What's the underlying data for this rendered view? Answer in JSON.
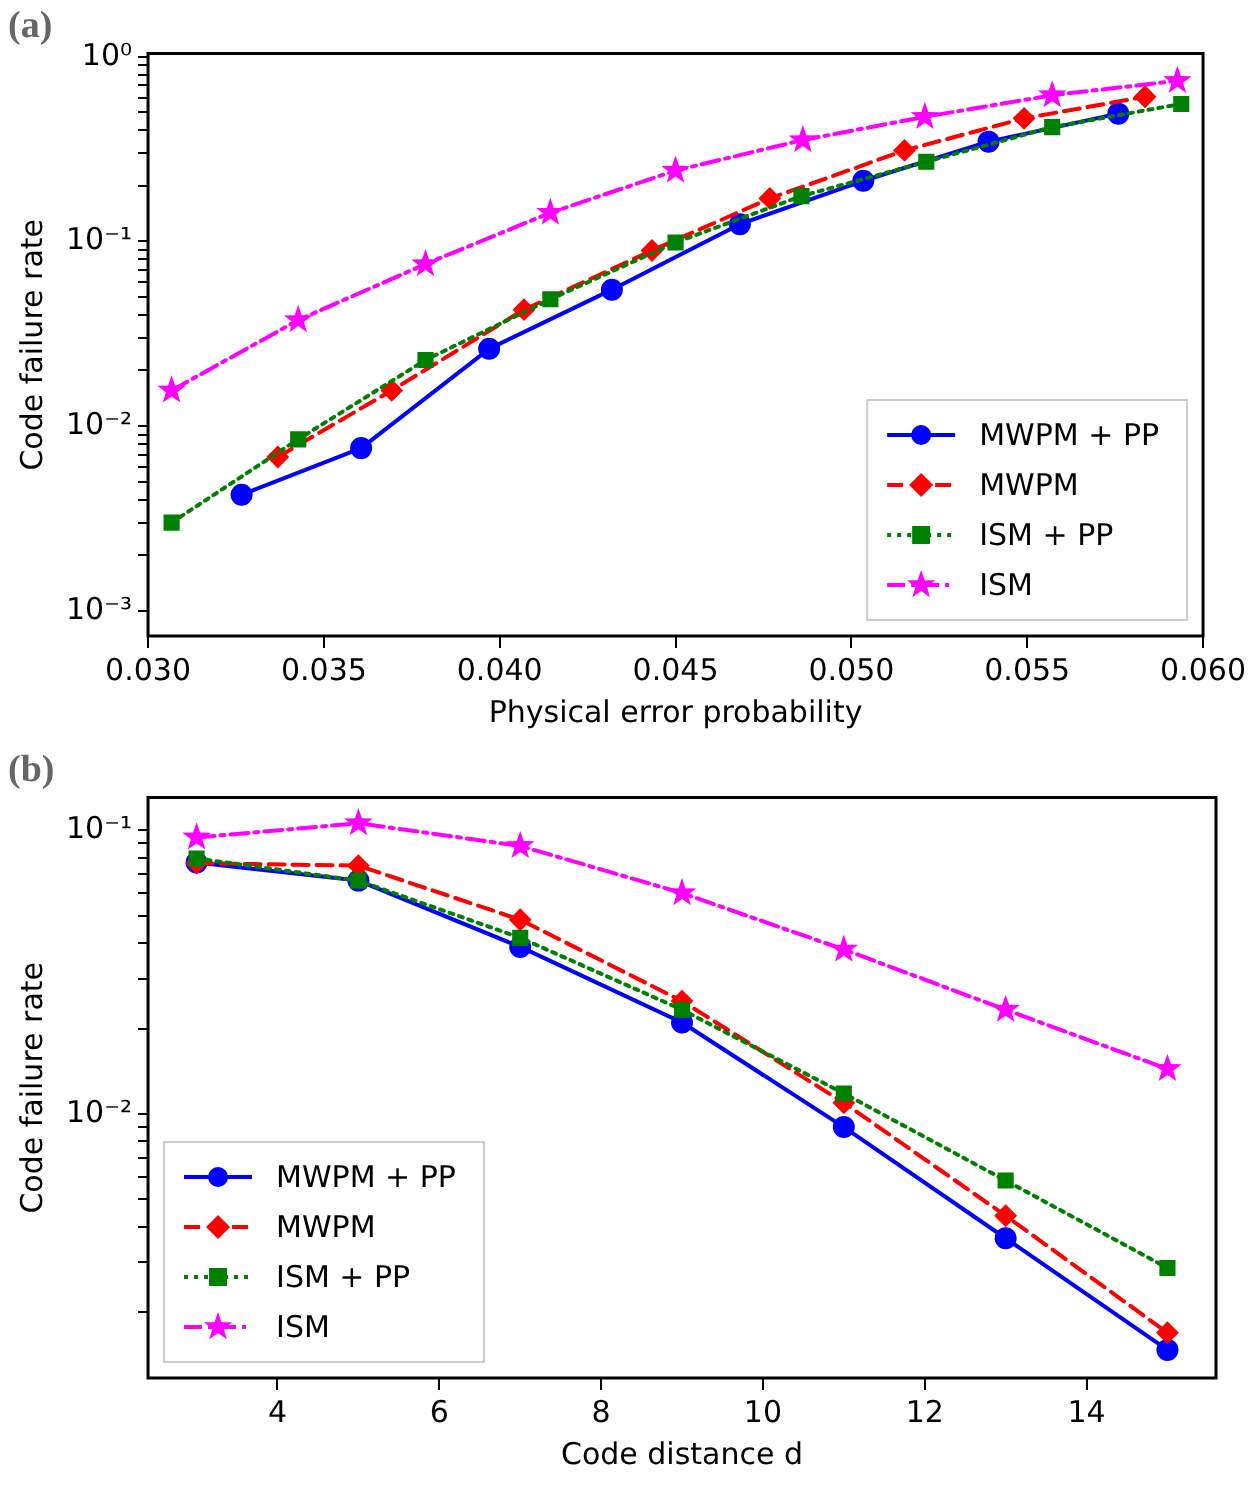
{
  "chart_data": [
    {
      "type": "line",
      "title": "(a)",
      "xlabel": "Physical error probability",
      "ylabel": "Code failure rate",
      "log": "y",
      "grid": false,
      "legend": "bottom right",
      "xlim": [
        0.03,
        0.06
      ],
      "xticks": [
        {
          "value": 0.03,
          "label": "0.030"
        },
        {
          "value": 0.035,
          "label": "0.035"
        },
        {
          "value": 0.04,
          "label": "0.040"
        },
        {
          "value": 0.045,
          "label": "0.045"
        },
        {
          "value": 0.05,
          "label": "0.050"
        },
        {
          "value": 0.055,
          "label": "0.055"
        },
        {
          "value": 0.06,
          "label": "0.060"
        }
      ],
      "ylim": [
        0.00073,
        1.04
      ],
      "yticks": [
        {
          "value": 0.001,
          "label": "10⁻³"
        },
        {
          "value": 0.002,
          "label": null
        },
        {
          "value": 0.003,
          "label": null
        },
        {
          "value": 0.004,
          "label": null
        },
        {
          "value": 0.005,
          "label": null
        },
        {
          "value": 0.006,
          "label": null
        },
        {
          "value": 0.007,
          "label": null
        },
        {
          "value": 0.008,
          "label": null
        },
        {
          "value": 0.009,
          "label": null
        },
        {
          "value": 0.01,
          "label": "10⁻²"
        },
        {
          "value": 0.02,
          "label": null
        },
        {
          "value": 0.03,
          "label": null
        },
        {
          "value": 0.04,
          "label": null
        },
        {
          "value": 0.05,
          "label": null
        },
        {
          "value": 0.06,
          "label": null
        },
        {
          "value": 0.07,
          "label": null
        },
        {
          "value": 0.08,
          "label": null
        },
        {
          "value": 0.09,
          "label": null
        },
        {
          "value": 0.1,
          "label": "10⁻¹"
        },
        {
          "value": 0.2,
          "label": null
        },
        {
          "value": 0.3,
          "label": null
        },
        {
          "value": 0.4,
          "label": null
        },
        {
          "value": 0.5,
          "label": null
        },
        {
          "value": 0.6,
          "label": null
        },
        {
          "value": 0.7,
          "label": null
        },
        {
          "value": 0.8,
          "label": null
        },
        {
          "value": 0.9,
          "label": null
        },
        {
          "value": 1,
          "label": "10⁰"
        }
      ],
      "series": [
        {
          "name": "MWPM + PP",
          "color": "#0000ff",
          "marker": "circle",
          "line_style": "solid",
          "x": [
            0.03266,
            0.03606,
            0.0397,
            0.04319,
            0.04683,
            0.05034,
            0.0539,
            0.05759
          ],
          "values": [
            0.00425,
            0.0076,
            0.0262,
            0.0548,
            0.124,
            0.213,
            0.347,
            0.492
          ]
        },
        {
          "name": "MWPM",
          "color": "#ff0000",
          "marker": "diamond",
          "line_style": "dashed",
          "x": [
            0.03369,
            0.03693,
            0.04069,
            0.04433,
            0.04768,
            0.05151,
            0.05491,
            0.05835
          ],
          "values": [
            0.0068,
            0.0156,
            0.0427,
            0.0893,
            0.171,
            0.311,
            0.464,
            0.607
          ]
        },
        {
          "name": "ISM + PP",
          "color": "#008000",
          "marker": "square",
          "line_style": "dotted",
          "x": [
            0.03067,
            0.03427,
            0.03789,
            0.04144,
            0.045,
            0.04858,
            0.05213,
            0.05571,
            0.05938
          ],
          "values": [
            0.003,
            0.00848,
            0.0228,
            0.0486,
            0.0987,
            0.176,
            0.27,
            0.416,
            0.555
          ]
        },
        {
          "name": "ISM",
          "color": "#ff00ff",
          "marker": "star",
          "line_style": "dashdot",
          "x": [
            0.03067,
            0.03427,
            0.03789,
            0.04144,
            0.045,
            0.04862,
            0.05209,
            0.05571,
            0.05927
          ],
          "values": [
            0.0156,
            0.0375,
            0.0754,
            0.143,
            0.242,
            0.354,
            0.473,
            0.619,
            0.741
          ]
        }
      ]
    },
    {
      "type": "line",
      "title": "(b)",
      "xlabel": "Code distance d",
      "ylabel": "Code failure rate",
      "log": "y",
      "grid": false,
      "legend": "bottom left",
      "xlim": [
        2.4,
        15.6
      ],
      "xticks": [
        4,
        6,
        8,
        10,
        12,
        14
      ],
      "ylim": [
        0.00117,
        0.1305
      ],
      "yticks": [
        {
          "value": 0.002,
          "label": null
        },
        {
          "value": 0.003,
          "label": null
        },
        {
          "value": 0.004,
          "label": null
        },
        {
          "value": 0.005,
          "label": null
        },
        {
          "value": 0.006,
          "label": null
        },
        {
          "value": 0.007,
          "label": null
        },
        {
          "value": 0.008,
          "label": null
        },
        {
          "value": 0.009,
          "label": null
        },
        {
          "value": 0.01,
          "label": "10⁻²"
        },
        {
          "value": 0.02,
          "label": null
        },
        {
          "value": 0.03,
          "label": null
        },
        {
          "value": 0.04,
          "label": null
        },
        {
          "value": 0.05,
          "label": null
        },
        {
          "value": 0.06,
          "label": null
        },
        {
          "value": 0.07,
          "label": null
        },
        {
          "value": 0.08,
          "label": null
        },
        {
          "value": 0.09,
          "label": null
        },
        {
          "value": 0.1,
          "label": "10⁻¹"
        }
      ],
      "x": [
        3,
        5,
        7,
        9,
        11,
        13,
        15
      ],
      "series": [
        {
          "name": "MWPM + PP",
          "color": "#0000ff",
          "marker": "circle",
          "line_style": "solid",
          "values": [
            0.077,
            0.0665,
            0.0388,
            0.021,
            0.00898,
            0.00364,
            0.00147
          ]
        },
        {
          "name": "MWPM",
          "color": "#ff0000",
          "marker": "diamond",
          "line_style": "dashed",
          "values": [
            0.0766,
            0.0751,
            0.0484,
            0.025,
            0.01094,
            0.00437,
            0.00169
          ]
        },
        {
          "name": "ISM + PP",
          "color": "#008000",
          "marker": "square",
          "line_style": "dotted",
          "values": [
            0.0796,
            0.0665,
            0.0418,
            0.0233,
            0.0118,
            0.00582,
            0.00286
          ]
        },
        {
          "name": "ISM",
          "color": "#ff00ff",
          "marker": "star",
          "line_style": "dashdot",
          "values": [
            0.0944,
            0.106,
            0.0881,
            0.0601,
            0.038,
            0.0233,
            0.0144
          ]
        }
      ]
    }
  ]
}
